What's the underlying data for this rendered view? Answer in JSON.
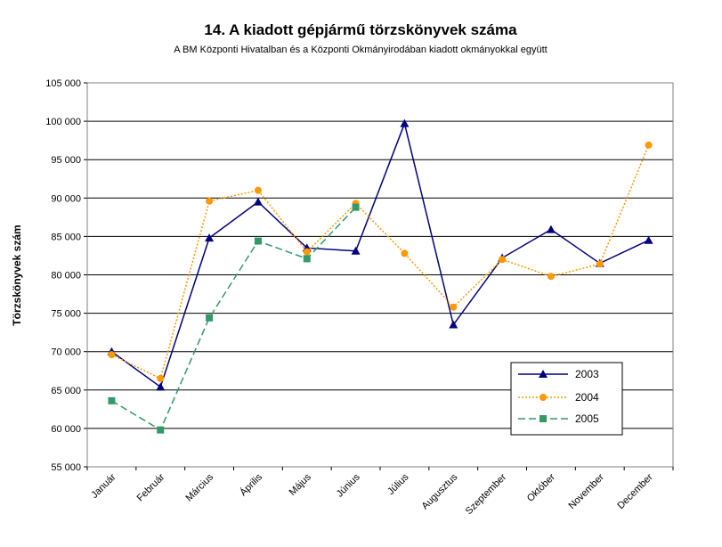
{
  "chart_data": {
    "type": "line",
    "title": "14. A  kiadott gépjármű  törzskönyvek száma",
    "subtitle": "A BM Központi Hivatalban és a Központi Okmányirodában kiadott okmányokkal együtt",
    "xlabel": "",
    "ylabel": "Törzskönyvek szám",
    "categories": [
      "Január",
      "Február",
      "Március",
      "Április",
      "Május",
      "Június",
      "Július",
      "Augusztus",
      "Szeptember",
      "Október",
      "November",
      "December"
    ],
    "ylim": [
      55000,
      105000
    ],
    "yticks": [
      55000,
      60000,
      65000,
      70000,
      75000,
      80000,
      85000,
      90000,
      95000,
      100000,
      105000
    ],
    "ytick_labels": [
      "55 000",
      "60 000",
      "65 000",
      "70 000",
      "75 000",
      "80 000",
      "85 000",
      "90 000",
      "95 000",
      "100 000",
      "105 000"
    ],
    "grid": true,
    "legend_position": "bottom-right",
    "series": [
      {
        "name": "2003",
        "color": "#000080",
        "marker": "triangle",
        "line": "solid",
        "values": [
          70000,
          65400,
          84800,
          89500,
          83500,
          83100,
          99700,
          73500,
          82200,
          85900,
          81500,
          84500
        ]
      },
      {
        "name": "2004",
        "color": "#FF9900",
        "marker": "circle",
        "line": "dotted",
        "values": [
          69600,
          66500,
          89600,
          91000,
          83000,
          89300,
          82800,
          75800,
          82000,
          79800,
          81400,
          96900
        ]
      },
      {
        "name": "2005",
        "color": "#339966",
        "marker": "square",
        "line": "dashed",
        "values": [
          63600,
          59800,
          74400,
          84400,
          82100,
          88800,
          null,
          null,
          null,
          null,
          null,
          null
        ]
      }
    ]
  }
}
